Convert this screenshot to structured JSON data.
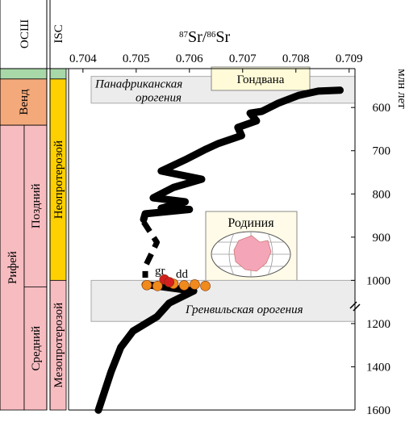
{
  "chart_data": {
    "type": "line",
    "x_label": {
      "sup1": "87",
      "t1": "Sr/",
      "sup2": "86",
      "t2": "Sr"
    },
    "y_label": "млн лет",
    "xlim": [
      0.70373,
      0.70911
    ],
    "xticks": [
      0.704,
      0.705,
      0.706,
      0.707,
      0.708,
      0.709
    ],
    "ylim": [
      510,
      1600
    ],
    "y_scale_break": 1000,
    "y_lower_compression": 2,
    "yticks": [
      600,
      700,
      800,
      900,
      1000,
      1200,
      1400,
      1600
    ],
    "series": [
      {
        "style": "solid",
        "color": "#000000",
        "x": [
          0.70883,
          0.70842,
          0.70805,
          0.70767,
          0.70736,
          0.70714,
          0.70726,
          0.70691,
          0.70698,
          0.70653,
          0.7063,
          0.70592,
          0.70547,
          0.70623,
          0.7057,
          0.70532,
          0.70592,
          0.70547,
          0.706,
          0.70517,
          0.70514
        ],
        "y": [
          560,
          562,
          572,
          590,
          609,
          613,
          631,
          646,
          665,
          684,
          697,
          721,
          747,
          766,
          785,
          809,
          818,
          833,
          836,
          846,
          859
        ]
      },
      {
        "style": "dashed",
        "color": "#000000",
        "x": [
          0.70514,
          0.70539,
          0.70517,
          0.70517
        ],
        "y": [
          865,
          912,
          968,
          994
        ]
      },
      {
        "style": "solid",
        "color": "#000000",
        "x": [
          0.70517,
          0.70608,
          0.70562,
          0.70539,
          0.70494,
          0.70471,
          0.70453,
          0.70438,
          0.70429
        ],
        "y": [
          1019,
          1049,
          1105,
          1168,
          1235,
          1310,
          1422,
          1534,
          1601
        ]
      }
    ],
    "samples": [
      {
        "name": "gr",
        "color": "#d42020",
        "x": [
          0.70553,
          0.70562
        ],
        "y": [
          998,
          1008
        ]
      },
      {
        "name": "dd",
        "color": "#f08a1c",
        "x": [
          0.7052,
          0.7054,
          0.7057,
          0.7059,
          0.7061,
          0.7063
        ],
        "y": [
          1022,
          1026,
          1016,
          1023,
          1019,
          1026
        ]
      }
    ],
    "orogenies": [
      {
        "line1": "Панафриканская",
        "line2": "орогения",
        "from": 528,
        "to": 590
      },
      {
        "line1": "Гренвильская орогения",
        "from": 1000,
        "to": 1190
      }
    ],
    "boxes": {
      "gondwana": "Гондвана",
      "rodinia": "Родиния"
    },
    "columns": {
      "osh_header": "ОСШ",
      "isc_header": "ISC",
      "osh": [
        {
          "label": "",
          "color": "#a8d8a8",
          "from": 510,
          "to": 534,
          "col": "full"
        },
        {
          "label": "Венд",
          "color": "#f4a97a",
          "from": 534,
          "to": 641,
          "col": "full"
        },
        {
          "label": "Рифей",
          "color": "#f7bcc0",
          "from": 641,
          "to": 1600,
          "col": "left"
        },
        {
          "label": "Поздний",
          "color": "#f7bcc0",
          "from": 641,
          "to": 1030,
          "col": "right"
        },
        {
          "label": "Средний",
          "color": "#f7bcc0",
          "from": 1030,
          "to": 1600,
          "col": "right"
        }
      ],
      "isc": [
        {
          "label": "",
          "color": "#a8d8a8",
          "from": 510,
          "to": 534
        },
        {
          "label": "Неопротерозой",
          "color": "#ffd000",
          "from": 534,
          "to": 1000
        },
        {
          "label": "Мезопротерозой",
          "color": "#f7bcc0",
          "from": 1000,
          "to": 1600
        }
      ]
    }
  }
}
